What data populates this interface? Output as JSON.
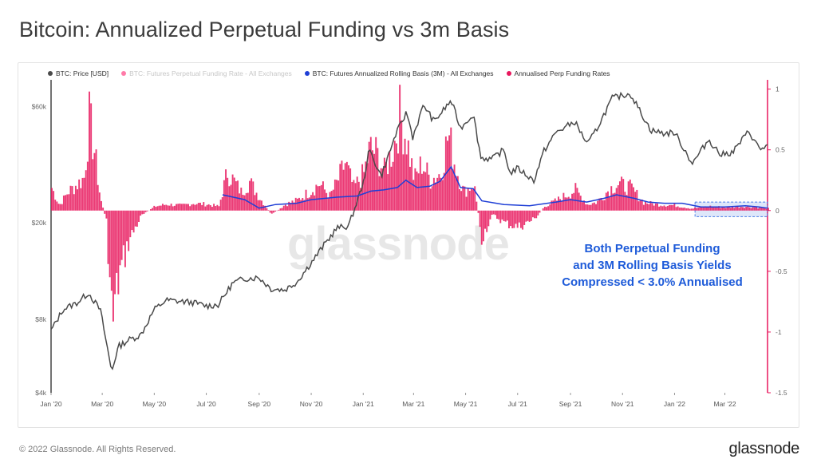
{
  "header": {
    "title": "Bitcoin: Annualized Perpetual Funding vs 3m Basis"
  },
  "legend": [
    {
      "label": "BTC: Price [USD]",
      "color": "#4a4a4a",
      "faded": false
    },
    {
      "label": "BTC: Futures Perpetual Funding Rate - All Exchanges",
      "color": "#ff7aa8",
      "faded": true
    },
    {
      "label": "BTC: Futures Annualized Rolling Basis (3M) - All Exchanges",
      "color": "#1f3fd6",
      "faded": false
    },
    {
      "label": "Annualised Perp Funding Rates",
      "color": "#e8175d",
      "faded": false
    }
  ],
  "annotation": {
    "line1": "Both Perpetual Funding",
    "line2": "and 3M Rolling Basis Yields",
    "line3": "Compressed < 3.0% Annualised"
  },
  "watermark": "glassnode",
  "footer": {
    "copyright": "© 2022 Glassnode. All Rights Reserved.",
    "logo": "glassnode"
  },
  "chart_data": {
    "type": "line",
    "title": "Bitcoin: Annualized Perpetual Funding vs 3m Basis",
    "x_ticks": [
      "Jan '20",
      "Mar '20",
      "May '20",
      "Jul '20",
      "Sep '20",
      "Nov '20",
      "Jan '21",
      "Mar '21",
      "May '21",
      "Jul '21",
      "Sep '21",
      "Nov '21",
      "Jan '22",
      "Mar '22"
    ],
    "y_left_ticks": [
      "$60k",
      "$20k",
      "$8k",
      "$4k"
    ],
    "y_left_tick_values": [
      60000,
      20000,
      8000,
      4000
    ],
    "y_left_scale": "log",
    "y_left_range": [
      4000,
      75000
    ],
    "y_right_ticks": [
      "1",
      "0.5",
      "0",
      "-0.5",
      "-1",
      "-1.5"
    ],
    "y_right_tick_values": [
      1,
      0.5,
      0,
      -0.5,
      -1,
      -1.5
    ],
    "y_right_range": [
      -1.5,
      1.05
    ],
    "x_range": [
      "2020-01-01",
      "2022-04-20"
    ],
    "series": [
      {
        "name": "BTC: Price [USD]",
        "color": "#4a4a4a",
        "axis": "left",
        "points": [
          [
            "2020-01-01",
            7200
          ],
          [
            "2020-01-15",
            8800
          ],
          [
            "2020-02-01",
            9400
          ],
          [
            "2020-02-14",
            10300
          ],
          [
            "2020-02-28",
            8700
          ],
          [
            "2020-03-12",
            4900
          ],
          [
            "2020-03-20",
            6200
          ],
          [
            "2020-04-01",
            6600
          ],
          [
            "2020-04-15",
            6900
          ],
          [
            "2020-05-01",
            8800
          ],
          [
            "2020-05-15",
            9600
          ],
          [
            "2020-06-01",
            9500
          ],
          [
            "2020-06-15",
            9400
          ],
          [
            "2020-07-01",
            9100
          ],
          [
            "2020-07-15",
            9200
          ],
          [
            "2020-08-01",
            11300
          ],
          [
            "2020-08-15",
            11800
          ],
          [
            "2020-09-01",
            11900
          ],
          [
            "2020-09-15",
            10700
          ],
          [
            "2020-10-01",
            10600
          ],
          [
            "2020-10-15",
            11400
          ],
          [
            "2020-11-01",
            13700
          ],
          [
            "2020-11-15",
            16000
          ],
          [
            "2020-12-01",
            19000
          ],
          [
            "2020-12-15",
            19400
          ],
          [
            "2021-01-01",
            29000
          ],
          [
            "2021-01-08",
            40000
          ],
          [
            "2021-01-22",
            31000
          ],
          [
            "2021-02-08",
            46000
          ],
          [
            "2021-02-21",
            57000
          ],
          [
            "2021-02-28",
            45000
          ],
          [
            "2021-03-13",
            61000
          ],
          [
            "2021-03-25",
            52000
          ],
          [
            "2021-04-14",
            63500
          ],
          [
            "2021-04-25",
            49000
          ],
          [
            "2021-05-10",
            56000
          ],
          [
            "2021-05-19",
            37000
          ],
          [
            "2021-06-01",
            36500
          ],
          [
            "2021-06-15",
            40000
          ],
          [
            "2021-06-22",
            32000
          ],
          [
            "2021-07-01",
            33500
          ],
          [
            "2021-07-20",
            29800
          ],
          [
            "2021-08-01",
            39500
          ],
          [
            "2021-08-15",
            47000
          ],
          [
            "2021-09-06",
            52000
          ],
          [
            "2021-09-21",
            42000
          ],
          [
            "2021-10-01",
            48000
          ],
          [
            "2021-10-20",
            65000
          ],
          [
            "2021-11-10",
            68000
          ],
          [
            "2021-11-26",
            54000
          ],
          [
            "2021-12-04",
            48000
          ],
          [
            "2021-12-20",
            46500
          ],
          [
            "2022-01-01",
            47000
          ],
          [
            "2022-01-22",
            35000
          ],
          [
            "2022-02-10",
            44000
          ],
          [
            "2022-02-24",
            38000
          ],
          [
            "2022-03-10",
            39000
          ],
          [
            "2022-03-29",
            47500
          ],
          [
            "2022-04-11",
            40000
          ],
          [
            "2022-04-20",
            41500
          ]
        ]
      },
      {
        "name": "BTC: Futures Annualized Rolling Basis (3M) - All Exchanges",
        "color": "#1f3fd6",
        "axis": "right",
        "points": [
          [
            "2020-07-20",
            0.13
          ],
          [
            "2020-08-15",
            0.09
          ],
          [
            "2020-09-01",
            0.02
          ],
          [
            "2020-09-20",
            0.05
          ],
          [
            "2020-10-15",
            0.06
          ],
          [
            "2020-11-01",
            0.09
          ],
          [
            "2020-12-01",
            0.11
          ],
          [
            "2020-12-25",
            0.12
          ],
          [
            "2021-01-10",
            0.16
          ],
          [
            "2021-01-25",
            0.17
          ],
          [
            "2021-02-10",
            0.19
          ],
          [
            "2021-02-20",
            0.25
          ],
          [
            "2021-03-05",
            0.19
          ],
          [
            "2021-03-20",
            0.2
          ],
          [
            "2021-04-01",
            0.24
          ],
          [
            "2021-04-14",
            0.36
          ],
          [
            "2021-04-25",
            0.19
          ],
          [
            "2021-05-10",
            0.18
          ],
          [
            "2021-05-20",
            0.08
          ],
          [
            "2021-06-15",
            0.05
          ],
          [
            "2021-07-15",
            0.04
          ],
          [
            "2021-08-15",
            0.07
          ],
          [
            "2021-09-01",
            0.09
          ],
          [
            "2021-09-20",
            0.07
          ],
          [
            "2021-10-10",
            0.1
          ],
          [
            "2021-10-25",
            0.13
          ],
          [
            "2021-11-15",
            0.1
          ],
          [
            "2021-12-01",
            0.07
          ],
          [
            "2021-12-20",
            0.06
          ],
          [
            "2022-01-10",
            0.06
          ],
          [
            "2022-02-01",
            0.03
          ],
          [
            "2022-03-01",
            0.03
          ],
          [
            "2022-03-25",
            0.04
          ],
          [
            "2022-04-10",
            0.03
          ],
          [
            "2022-04-20",
            0.02
          ]
        ]
      },
      {
        "name": "Annualised Perp Funding Rates",
        "color": "#e8175d",
        "axis": "right",
        "type": "bar",
        "points": [
          [
            "2020-01-01",
            0.22
          ],
          [
            "2020-01-10",
            0.05
          ],
          [
            "2020-01-20",
            0.18
          ],
          [
            "2020-02-01",
            0.26
          ],
          [
            "2020-02-08",
            0.32
          ],
          [
            "2020-02-14",
            0.88
          ],
          [
            "2020-02-20",
            0.58
          ],
          [
            "2020-02-27",
            0.12
          ],
          [
            "2020-03-05",
            -0.1
          ],
          [
            "2020-03-12",
            -1.1
          ],
          [
            "2020-03-20",
            -0.62
          ],
          [
            "2020-04-01",
            -0.28
          ],
          [
            "2020-04-15",
            -0.05
          ],
          [
            "2020-05-01",
            0.04
          ],
          [
            "2020-05-15",
            0.06
          ],
          [
            "2020-06-01",
            0.05
          ],
          [
            "2020-06-15",
            0.07
          ],
          [
            "2020-07-01",
            0.06
          ],
          [
            "2020-07-15",
            0.04
          ],
          [
            "2020-07-25",
            0.38
          ],
          [
            "2020-08-10",
            0.18
          ],
          [
            "2020-08-20",
            0.28
          ],
          [
            "2020-09-01",
            0.12
          ],
          [
            "2020-09-15",
            -0.04
          ],
          [
            "2020-10-01",
            0.06
          ],
          [
            "2020-10-15",
            0.1
          ],
          [
            "2020-11-01",
            0.2
          ],
          [
            "2020-11-10",
            0.26
          ],
          [
            "2020-11-22",
            0.14
          ],
          [
            "2020-12-01",
            0.28
          ],
          [
            "2020-12-10",
            0.46
          ],
          [
            "2020-12-20",
            0.22
          ],
          [
            "2021-01-01",
            0.36
          ],
          [
            "2021-01-08",
            0.6
          ],
          [
            "2021-01-15",
            0.56
          ],
          [
            "2021-01-25",
            0.38
          ],
          [
            "2021-02-05",
            0.62
          ],
          [
            "2021-02-12",
            0.92
          ],
          [
            "2021-02-20",
            0.7
          ],
          [
            "2021-03-01",
            0.3
          ],
          [
            "2021-03-10",
            0.46
          ],
          [
            "2021-03-20",
            0.3
          ],
          [
            "2021-04-01",
            0.36
          ],
          [
            "2021-04-10",
            0.74
          ],
          [
            "2021-04-18",
            0.44
          ],
          [
            "2021-04-28",
            0.18
          ],
          [
            "2021-05-10",
            0.26
          ],
          [
            "2021-05-19",
            -0.26
          ],
          [
            "2021-06-01",
            -0.04
          ],
          [
            "2021-06-15",
            -0.12
          ],
          [
            "2021-07-01",
            -0.16
          ],
          [
            "2021-07-20",
            -0.08
          ],
          [
            "2021-08-01",
            0.04
          ],
          [
            "2021-08-20",
            0.12
          ],
          [
            "2021-09-06",
            0.2
          ],
          [
            "2021-09-20",
            0.06
          ],
          [
            "2021-10-01",
            0.08
          ],
          [
            "2021-10-15",
            0.2
          ],
          [
            "2021-10-25",
            0.26
          ],
          [
            "2021-11-10",
            0.22
          ],
          [
            "2021-11-25",
            0.08
          ],
          [
            "2021-12-10",
            0.06
          ],
          [
            "2022-01-01",
            0.05
          ],
          [
            "2022-01-20",
            0.02
          ],
          [
            "2022-02-10",
            0.04
          ],
          [
            "2022-03-01",
            0.03
          ],
          [
            "2022-03-20",
            0.04
          ],
          [
            "2022-04-10",
            0.03
          ],
          [
            "2022-04-20",
            0.02
          ]
        ]
      }
    ],
    "highlight_box": {
      "x_start": "2022-01-25",
      "x_end": "2022-04-20",
      "y_min": -0.05,
      "y_max": 0.07,
      "color": "#4a7ce6"
    }
  }
}
